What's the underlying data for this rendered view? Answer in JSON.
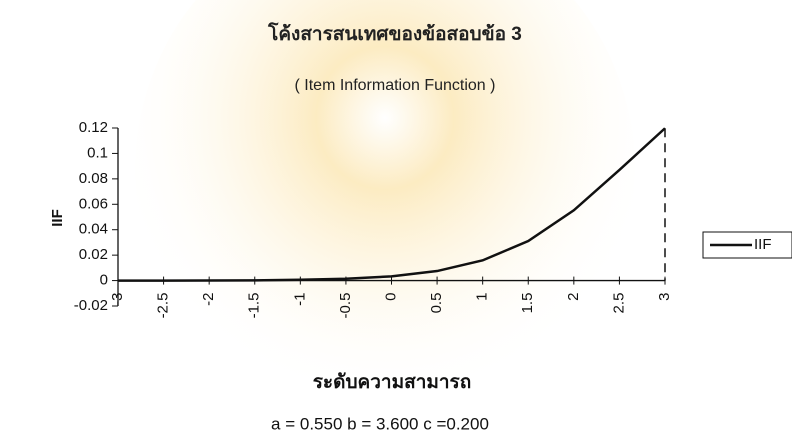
{
  "chart_data": {
    "type": "line",
    "title": "โค้งสารสนเทศของข้อสอบข้อ 3",
    "subtitle": "( Item Information Function )",
    "y_label": "IIF",
    "x_label": "ระดับความสามารถ",
    "annotation": "a  =  0.550  b  =  3.600  c  =0.200",
    "x": [
      -3,
      -2.5,
      -2,
      -1.5,
      -1,
      -0.5,
      0,
      0.5,
      1,
      1.5,
      2,
      2.5,
      3
    ],
    "series": [
      {
        "name": "IIF",
        "color": "#111111",
        "values": [
          0.0,
          0.0,
          0.0001,
          0.0002,
          0.0006,
          0.0014,
          0.0033,
          0.0075,
          0.0159,
          0.0311,
          0.0553,
          0.087,
          0.1198
        ]
      }
    ],
    "xlim": [
      -3,
      3
    ],
    "xticks": [
      -3,
      -2.5,
      -2,
      -1.5,
      -1,
      -0.5,
      0,
      0.5,
      1,
      1.5,
      2,
      2.5,
      3
    ],
    "ylim": [
      -0.02,
      0.12
    ],
    "yticks": [
      -0.02,
      0,
      0.02,
      0.04,
      0.06,
      0.08,
      0.1,
      0.12
    ],
    "legend": "right"
  }
}
